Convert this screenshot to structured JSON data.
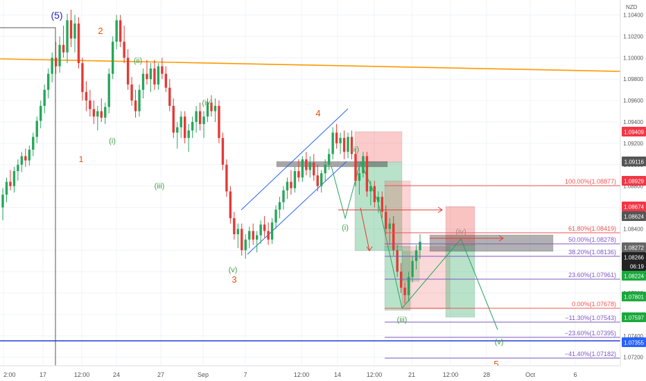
{
  "header": {
    "currency": "NZD"
  },
  "chart_data": {
    "type": "candlestick",
    "y_axis": {
      "min": 1.0712,
      "max": 1.1054,
      "ticks": [
        "1.10400",
        "1.10200",
        "1.10000",
        "1.09800",
        "1.09600",
        "1.09400",
        "1.09200",
        "1.09000",
        "1.08800",
        "1.08600",
        "1.08400",
        "1.08200",
        "1.08000",
        "1.07800",
        "1.07600",
        "1.07400",
        "1.07200"
      ]
    },
    "x_axis": {
      "ticks": [
        "2:00",
        "17",
        "12:00",
        "24",
        "27",
        "Sep",
        "7",
        "12:00",
        "14",
        "12:00",
        "21",
        "12:00",
        "28",
        "Oct",
        "6"
      ]
    },
    "price_badges": [
      {
        "label": "1.09409",
        "value": 1.09409,
        "color": "#f23645"
      },
      {
        "label": "1.09116",
        "value": 1.09116,
        "color": "#555555"
      },
      {
        "label": "1.08929",
        "value": 1.08929,
        "color": "#f23645"
      },
      {
        "label": "1.08674",
        "value": 1.08674,
        "color": "#f23645"
      },
      {
        "label": "1.08624",
        "value": 1.08624,
        "color": "#555555"
      },
      {
        "label": "1.08272",
        "value": 1.08272,
        "color": "#666666"
      },
      {
        "label": "1.08266",
        "value": 1.08266,
        "color": "#222222"
      },
      {
        "label": "06:19",
        "value": 1.0815,
        "color": "#222222"
      },
      {
        "label": "1.08224",
        "value": 1.08224,
        "color": "#1aa83c"
      },
      {
        "label": "1.07801",
        "value": 1.07801,
        "color": "#1aa83c"
      },
      {
        "label": "1.07597",
        "value": 1.07597,
        "color": "#1aa83c"
      },
      {
        "label": "1.07355",
        "value": 1.07355,
        "color": "#2962ff"
      }
    ],
    "fib_levels": [
      {
        "label": "100.00%(1.08877)",
        "value": 1.08877,
        "color": "#ef5350"
      },
      {
        "label": "61.80%(1.08419)",
        "value": 1.08419,
        "color": "#ef5350"
      },
      {
        "label": "50.00%(1.08278)",
        "value": 1.08278,
        "color": "#7e57c2"
      },
      {
        "label": "38.20%(1.08136)",
        "value": 1.08136,
        "color": "#7e57c2"
      },
      {
        "label": "23.60%(1.07961)",
        "value": 1.07961,
        "color": "#7e57c2"
      },
      {
        "label": "0.00%(1.07678)",
        "value": 1.07678,
        "color": "#ef5350"
      },
      {
        "label": "−11.30%(1.07543)",
        "value": 1.07543,
        "color": "#7e57c2"
      },
      {
        "label": "−23.60%(1.07395)",
        "value": 1.07395,
        "color": "#7e57c2"
      },
      {
        "label": "−41.40%(1.07182)",
        "value": 1.07182,
        "color": "#7e57c2"
      }
    ],
    "wave_labels": [
      {
        "label": "(5)",
        "color": "#1f1fcc"
      },
      {
        "label": "2",
        "color": "#e65100"
      },
      {
        "label": "(ii)",
        "color": "#43a047"
      },
      {
        "label": "(iv)",
        "color": "#43a047"
      },
      {
        "label": "(i)",
        "color": "#43a047"
      },
      {
        "label": "1",
        "color": "#e65100"
      },
      {
        "label": "(iii)",
        "color": "#43a047"
      },
      {
        "label": "(v)",
        "color": "#43a047"
      },
      {
        "label": "3",
        "color": "#e65100"
      },
      {
        "label": "4",
        "color": "#e65100"
      },
      {
        "label": "(ii)",
        "color": "#43a047"
      },
      {
        "label": "(i)",
        "color": "#43a047"
      },
      {
        "label": "(iv)",
        "color": "#a1887f"
      },
      {
        "label": "(iii)",
        "color": "#43a047"
      },
      {
        "label": "(v)",
        "color": "#43a047"
      },
      {
        "label": "5",
        "color": "#e65100"
      }
    ],
    "colors": {
      "up": "#26a65b",
      "down": "#e53935",
      "trendline": "#ff9800",
      "support": "#1e3ad6",
      "channel": "#2962ff",
      "grid": "#f0f3fa"
    },
    "candles": [
      [
        1.086,
        1.0878,
        1.0848,
        1.0872
      ],
      [
        1.0872,
        1.0888,
        1.0865,
        1.0884
      ],
      [
        1.0884,
        1.0895,
        1.0876,
        1.088
      ],
      [
        1.088,
        1.0898,
        1.0874,
        1.0894
      ],
      [
        1.0894,
        1.0905,
        1.0885,
        1.09
      ],
      [
        1.09,
        1.0912,
        1.0893,
        1.0908
      ],
      [
        1.0908,
        1.0915,
        1.0898,
        1.0904
      ],
      [
        1.0904,
        1.0918,
        1.0899,
        1.0914
      ],
      [
        1.0914,
        1.093,
        1.0908,
        1.0926
      ],
      [
        1.0926,
        1.0945,
        1.092,
        1.0941
      ],
      [
        1.0941,
        1.096,
        1.0934,
        1.0955
      ],
      [
        1.0955,
        1.0975,
        1.0948,
        1.097
      ],
      [
        1.097,
        1.099,
        1.0962,
        1.0985
      ],
      [
        1.0985,
        1.1005,
        1.0977,
        1.1
      ],
      [
        1.1,
        1.1015,
        1.0985,
        1.0992
      ],
      [
        1.0992,
        1.102,
        1.0986,
        1.1012
      ],
      [
        1.1012,
        1.103,
        1.1,
        1.1005
      ],
      [
        1.1005,
        1.1041,
        1.0995,
        1.1035
      ],
      [
        1.1035,
        1.1045,
        1.101,
        1.1018
      ],
      [
        1.1018,
        1.104,
        1.1005,
        1.1032
      ],
      [
        1.1032,
        1.1038,
        1.099,
        1.0995
      ],
      [
        1.0995,
        1.1,
        1.096,
        1.0968
      ],
      [
        1.0968,
        1.0978,
        1.095,
        1.096
      ],
      [
        1.096,
        1.097,
        1.0945,
        1.0952
      ],
      [
        1.0952,
        1.096,
        1.0938,
        1.0945
      ],
      [
        1.0945,
        1.0955,
        1.0932,
        1.095
      ],
      [
        1.095,
        1.0962,
        1.094,
        1.0944
      ],
      [
        1.0944,
        1.0958,
        1.0938,
        1.0954
      ],
      [
        1.0954,
        1.099,
        1.0948,
        1.0985
      ],
      [
        1.0985,
        1.102,
        1.098,
        1.1015
      ],
      [
        1.1015,
        1.104,
        1.1008,
        1.1035
      ],
      [
        1.1035,
        1.104,
        1.101,
        1.1015
      ],
      [
        1.1015,
        1.103,
        1.0995,
        1.1
      ],
      [
        1.1,
        1.1008,
        1.097,
        1.0975
      ],
      [
        1.0975,
        1.0982,
        1.0955,
        1.096
      ],
      [
        1.096,
        1.097,
        1.0944,
        1.095
      ],
      [
        1.095,
        1.0975,
        1.0945,
        1.097
      ],
      [
        1.097,
        1.099,
        1.0962,
        1.0985
      ],
      [
        1.0985,
        1.0998,
        1.0975,
        1.098
      ],
      [
        1.098,
        1.0995,
        1.0968,
        1.099
      ],
      [
        1.099,
        1.0998,
        1.097,
        1.0975
      ],
      [
        1.0975,
        1.0995,
        1.097,
        1.0992
      ],
      [
        1.0992,
        1.1,
        1.098,
        1.0985
      ],
      [
        1.0985,
        1.0992,
        1.0968,
        1.0972
      ],
      [
        1.0972,
        1.098,
        1.095,
        1.0955
      ],
      [
        1.0955,
        1.0962,
        1.0925,
        1.093
      ],
      [
        1.093,
        1.094,
        1.0915,
        1.0935
      ],
      [
        1.0935,
        1.095,
        1.0925,
        1.0945
      ],
      [
        1.0945,
        1.095,
        1.092,
        1.0925
      ],
      [
        1.0925,
        1.0938,
        1.0912,
        1.0932
      ],
      [
        1.0932,
        1.0945,
        1.0925,
        1.094
      ],
      [
        1.094,
        1.0955,
        1.093,
        1.095
      ],
      [
        1.095,
        1.0958,
        1.0932,
        1.0938
      ],
      [
        1.0938,
        1.095,
        1.0925,
        1.0945
      ],
      [
        1.0945,
        1.0962,
        1.094,
        1.0958
      ],
      [
        1.0958,
        1.0965,
        1.0945,
        1.095
      ],
      [
        1.095,
        1.0962,
        1.094,
        1.0955
      ],
      [
        1.0955,
        1.096,
        1.092,
        1.0925
      ],
      [
        1.0925,
        1.093,
        1.0895,
        1.09
      ],
      [
        1.09,
        1.0905,
        1.087,
        1.0875
      ],
      [
        1.0875,
        1.088,
        1.0845,
        1.085
      ],
      [
        1.085,
        1.0856,
        1.083,
        1.0835
      ],
      [
        1.0835,
        1.0845,
        1.0822,
        1.084
      ],
      [
        1.084,
        1.0845,
        1.0815,
        1.082
      ],
      [
        1.082,
        1.0835,
        1.0812,
        1.083
      ],
      [
        1.083,
        1.0842,
        1.0822,
        1.0838
      ],
      [
        1.0838,
        1.0845,
        1.0825,
        1.083
      ],
      [
        1.083,
        1.0838,
        1.0818,
        1.0834
      ],
      [
        1.0834,
        1.0848,
        1.0826,
        1.0844
      ],
      [
        1.0844,
        1.0852,
        1.0832,
        1.0838
      ],
      [
        1.0838,
        1.0846,
        1.0825,
        1.083
      ],
      [
        1.083,
        1.085,
        1.0826,
        1.0846
      ],
      [
        1.0846,
        1.0862,
        1.084,
        1.0858
      ],
      [
        1.0858,
        1.087,
        1.085,
        1.0865
      ],
      [
        1.0865,
        1.088,
        1.0858,
        1.0876
      ],
      [
        1.0876,
        1.0888,
        1.0868,
        1.0884
      ],
      [
        1.0884,
        1.0895,
        1.0872,
        1.0878
      ],
      [
        1.0878,
        1.0898,
        1.0874,
        1.0894
      ],
      [
        1.0894,
        1.0905,
        1.0884,
        1.0888
      ],
      [
        1.0888,
        1.0908,
        1.0884,
        1.0905
      ],
      [
        1.0905,
        1.0912,
        1.089,
        1.0895
      ],
      [
        1.0895,
        1.0908,
        1.0888,
        1.0902
      ],
      [
        1.0902,
        1.091,
        1.0885,
        1.089
      ],
      [
        1.089,
        1.09,
        1.0875,
        1.088
      ],
      [
        1.088,
        1.0895,
        1.0874,
        1.0892
      ],
      [
        1.0892,
        1.0905,
        1.0884,
        1.09
      ],
      [
        1.09,
        1.0915,
        1.0895,
        1.091
      ],
      [
        1.091,
        1.0935,
        1.0905,
        1.093
      ],
      [
        1.093,
        1.0938,
        1.0915,
        1.092
      ],
      [
        1.092,
        1.093,
        1.091,
        1.0925
      ],
      [
        1.0925,
        1.0932,
        1.0905,
        1.0912
      ],
      [
        1.0912,
        1.093,
        1.0906,
        1.0926
      ],
      [
        1.0926,
        1.0932,
        1.0905,
        1.091
      ],
      [
        1.091,
        1.0915,
        1.088,
        1.0885
      ],
      [
        1.0885,
        1.0898,
        1.0872,
        1.0892
      ],
      [
        1.0892,
        1.0912,
        1.0888,
        1.0908
      ],
      [
        1.0908,
        1.0912,
        1.087,
        1.0875
      ],
      [
        1.0875,
        1.0885,
        1.0862,
        1.088
      ],
      [
        1.088,
        1.0885,
        1.086,
        1.0865
      ],
      [
        1.0865,
        1.0875,
        1.0855,
        1.087
      ],
      [
        1.087,
        1.0875,
        1.085,
        1.0856
      ],
      [
        1.0856,
        1.0862,
        1.0835,
        1.084
      ],
      [
        1.084,
        1.085,
        1.0825,
        1.0845
      ],
      [
        1.0845,
        1.0852,
        1.0815,
        1.082
      ],
      [
        1.082,
        1.0825,
        1.0795,
        1.08
      ],
      [
        1.08,
        1.0808,
        1.078,
        1.0785
      ],
      [
        1.0785,
        1.079,
        1.077,
        1.0778
      ],
      [
        1.0778,
        1.08,
        1.0772,
        1.0795
      ],
      [
        1.0795,
        1.0815,
        1.079,
        1.081
      ],
      [
        1.081,
        1.0825,
        1.0802,
        1.082
      ],
      [
        1.082,
        1.0835,
        1.0812,
        1.0828
      ]
    ]
  }
}
